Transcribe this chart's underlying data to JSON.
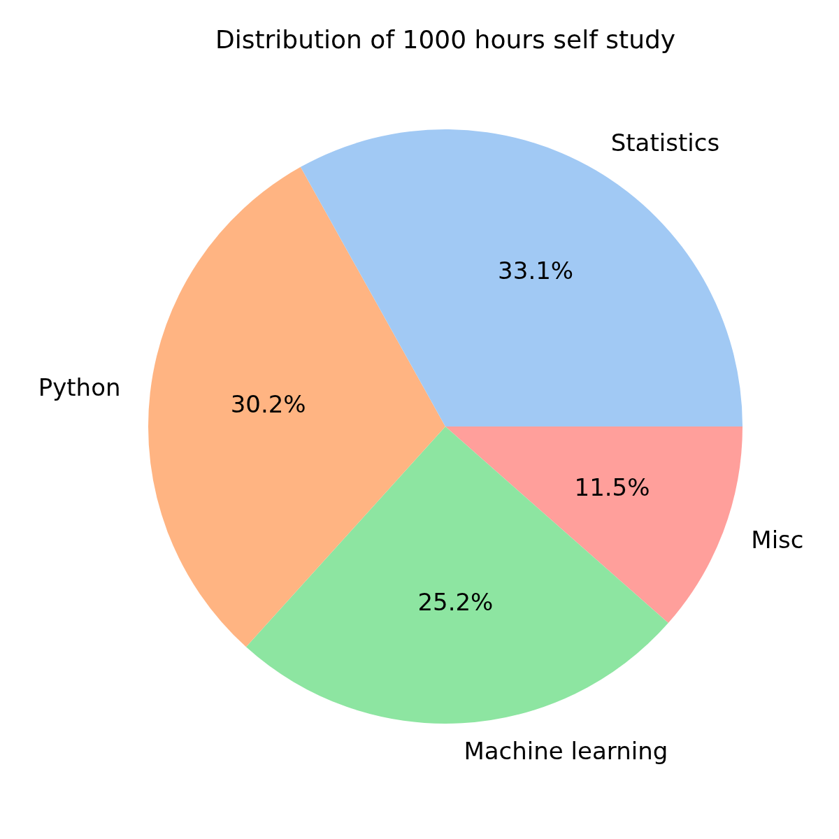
{
  "chart_data": {
    "type": "pie",
    "title": "Distribution of 1000 hours self study",
    "categories": [
      "Statistics",
      "Python",
      "Machine learning",
      "Misc"
    ],
    "values": [
      33.1,
      30.2,
      25.2,
      11.5
    ],
    "value_labels": [
      "33.1%",
      "30.2%",
      "25.2%",
      "11.5%"
    ],
    "colors": [
      "#a1c9f4",
      "#ffb482",
      "#8de5a1",
      "#ff9f9b"
    ],
    "legend": false
  }
}
